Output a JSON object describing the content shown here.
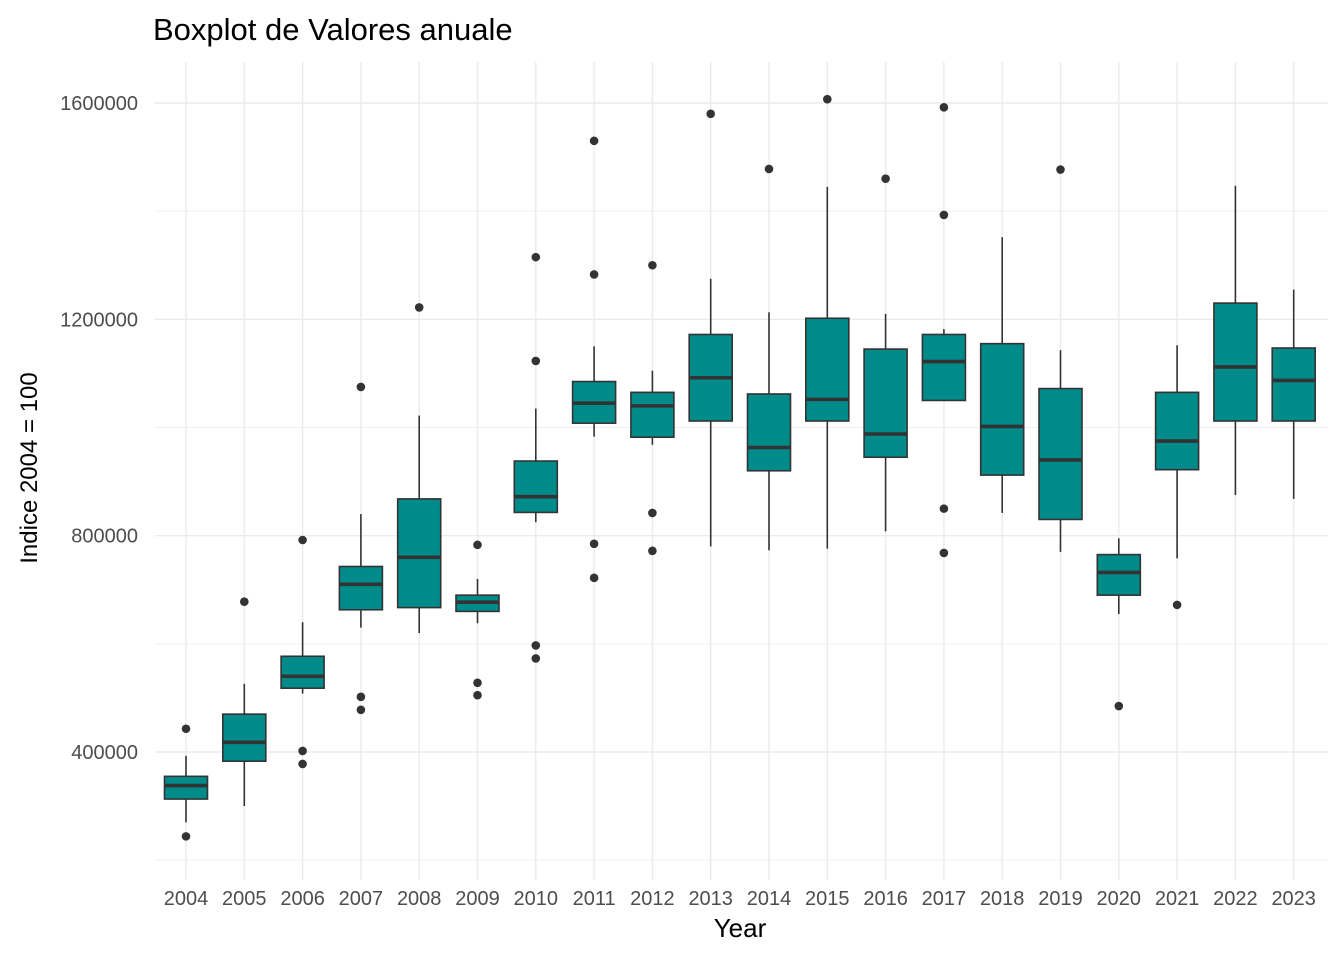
{
  "chart_data": {
    "type": "boxplot",
    "title": "Boxplot de Valores anuale",
    "xlabel": "Year",
    "ylabel": "Indice 2004 = 100",
    "ylim": [
      190000,
      1610000
    ],
    "yticks": [
      400000,
      800000,
      1200000,
      1600000
    ],
    "grid": true,
    "box_color": "#008b8b",
    "categories": [
      "2004",
      "2005",
      "2006",
      "2007",
      "2008",
      "2009",
      "2010",
      "2011",
      "2012",
      "2013",
      "2014",
      "2015",
      "2016",
      "2017",
      "2018",
      "2019",
      "2020",
      "2021",
      "2022",
      "2023"
    ],
    "boxes": [
      {
        "x": "2004",
        "whisker_low": 270000,
        "q1": 313000,
        "median": 338000,
        "q3": 355000,
        "whisker_high": 393000,
        "outliers": [
          443000,
          244000
        ]
      },
      {
        "x": "2005",
        "whisker_low": 300000,
        "q1": 383000,
        "median": 418000,
        "q3": 470000,
        "whisker_high": 526000,
        "outliers": [
          678000
        ]
      },
      {
        "x": "2006",
        "whisker_low": 508000,
        "q1": 518000,
        "median": 540000,
        "q3": 577000,
        "whisker_high": 640000,
        "outliers": [
          792000,
          402000,
          378000
        ]
      },
      {
        "x": "2007",
        "whisker_low": 630000,
        "q1": 663000,
        "median": 710000,
        "q3": 743000,
        "whisker_high": 840000,
        "outliers": [
          1075000,
          502000,
          478000
        ]
      },
      {
        "x": "2008",
        "whisker_low": 620000,
        "q1": 667000,
        "median": 760000,
        "q3": 868000,
        "whisker_high": 1022000,
        "outliers": [
          1222000
        ]
      },
      {
        "x": "2009",
        "whisker_low": 638000,
        "q1": 660000,
        "median": 677000,
        "q3": 690000,
        "whisker_high": 720000,
        "outliers": [
          783000,
          528000,
          505000
        ]
      },
      {
        "x": "2010",
        "whisker_low": 825000,
        "q1": 843000,
        "median": 872000,
        "q3": 938000,
        "whisker_high": 1035000,
        "outliers": [
          1315000,
          1123000,
          597000,
          573000
        ]
      },
      {
        "x": "2011",
        "whisker_low": 983000,
        "q1": 1008000,
        "median": 1045000,
        "q3": 1085000,
        "whisker_high": 1150000,
        "outliers": [
          1530000,
          1283000,
          785000,
          722000
        ]
      },
      {
        "x": "2012",
        "whisker_low": 968000,
        "q1": 982000,
        "median": 1040000,
        "q3": 1065000,
        "whisker_high": 1105000,
        "outliers": [
          1300000,
          842000,
          772000
        ]
      },
      {
        "x": "2013",
        "whisker_low": 780000,
        "q1": 1012000,
        "median": 1092000,
        "q3": 1172000,
        "whisker_high": 1275000,
        "outliers": [
          1580000
        ]
      },
      {
        "x": "2014",
        "whisker_low": 773000,
        "q1": 920000,
        "median": 963000,
        "q3": 1062000,
        "whisker_high": 1213000,
        "outliers": [
          1478000
        ]
      },
      {
        "x": "2015",
        "whisker_low": 776000,
        "q1": 1012000,
        "median": 1052000,
        "q3": 1202000,
        "whisker_high": 1445000,
        "outliers": [
          1607000
        ]
      },
      {
        "x": "2016",
        "whisker_low": 808000,
        "q1": 945000,
        "median": 988000,
        "q3": 1145000,
        "whisker_high": 1210000,
        "outliers": [
          1460000
        ]
      },
      {
        "x": "2017",
        "whisker_low": 1050000,
        "q1": 1050000,
        "median": 1122000,
        "q3": 1172000,
        "whisker_high": 1182000,
        "outliers": [
          1592000,
          1393000,
          850000,
          768000
        ]
      },
      {
        "x": "2018",
        "whisker_low": 842000,
        "q1": 912000,
        "median": 1002000,
        "q3": 1155000,
        "whisker_high": 1352000,
        "outliers": []
      },
      {
        "x": "2019",
        "whisker_low": 770000,
        "q1": 830000,
        "median": 940000,
        "q3": 1072000,
        "whisker_high": 1143000,
        "outliers": [
          1477000
        ]
      },
      {
        "x": "2020",
        "whisker_low": 655000,
        "q1": 690000,
        "median": 732000,
        "q3": 765000,
        "whisker_high": 795000,
        "outliers": [
          485000
        ]
      },
      {
        "x": "2021",
        "whisker_low": 758000,
        "q1": 922000,
        "median": 975000,
        "q3": 1065000,
        "whisker_high": 1152000,
        "outliers": [
          672000
        ]
      },
      {
        "x": "2022",
        "whisker_low": 875000,
        "q1": 1012000,
        "median": 1112000,
        "q3": 1230000,
        "whisker_high": 1447000,
        "outliers": []
      },
      {
        "x": "2023",
        "whisker_low": 868000,
        "q1": 1012000,
        "median": 1087000,
        "q3": 1147000,
        "whisker_high": 1255000,
        "outliers": []
      }
    ]
  }
}
